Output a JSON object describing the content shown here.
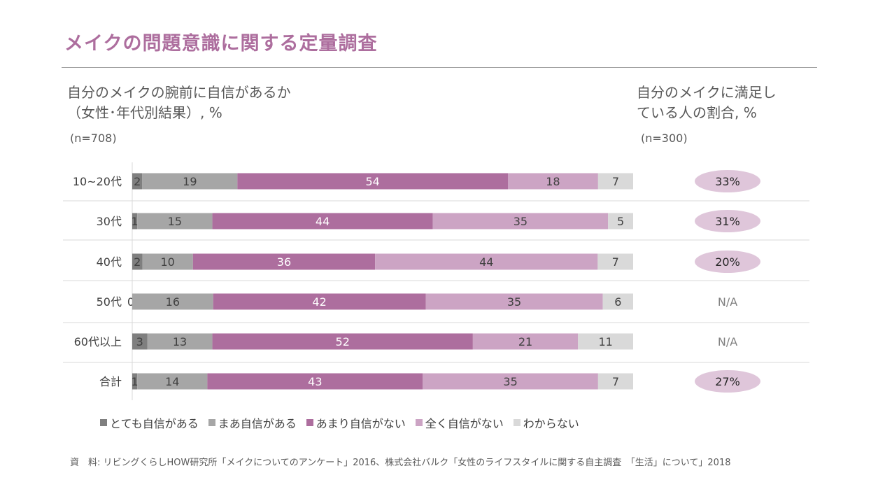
{
  "title": "メイクの問題意識に関する定量調査",
  "left_heading": {
    "line1": "自分のメイクの腕前に自信があるか",
    "line2": "（女性･年代別結果）, %",
    "n": "(n=708)"
  },
  "right_heading": {
    "line1": "自分のメイクに満足し",
    "line2": "ている人の割合, %",
    "n": "(n=300)"
  },
  "chart_data": [
    {
      "type": "bar",
      "orientation": "horizontal-stacked-100",
      "categories": [
        "10~20代",
        "30代",
        "40代",
        "50代",
        "60代以上",
        "合計"
      ],
      "series": [
        {
          "name": "とても自信がある",
          "color": "#7f7f7f",
          "values": [
            2,
            1,
            2,
            0,
            3,
            1
          ]
        },
        {
          "name": "まあ自信がある",
          "color": "#a6a6a6",
          "values": [
            19,
            15,
            10,
            16,
            13,
            14
          ]
        },
        {
          "name": "あまり自信がない",
          "color": "#ad6e9e",
          "values": [
            54,
            44,
            36,
            42,
            52,
            43
          ]
        },
        {
          "name": "全く自信がない",
          "color": "#cca4c4",
          "values": [
            18,
            35,
            44,
            35,
            21,
            35
          ]
        },
        {
          "name": "わからない",
          "color": "#d9d9d9",
          "values": [
            7,
            5,
            7,
            6,
            11,
            7
          ]
        }
      ],
      "legend": "bottom"
    },
    {
      "type": "table",
      "categories": [
        "10~20代",
        "30代",
        "40代",
        "50代",
        "60代以上",
        "合計"
      ],
      "values": [
        "33%",
        "31%",
        "20%",
        "N/A",
        "N/A",
        "27%"
      ],
      "highlight_color": "#dfc6da"
    }
  ],
  "source": "資　料: リビングくらしHOW研究所「メイクについてのアンケート」2016、株式会社バルク「女性のライフスタイルに関する自主調査　「生活」について」2018"
}
